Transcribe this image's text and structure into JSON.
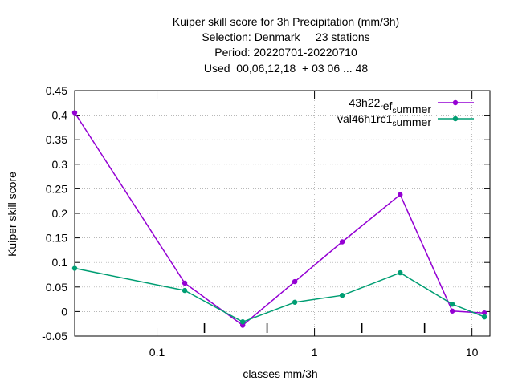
{
  "chart_data": {
    "type": "line",
    "title_lines": [
      "Kuiper skill score  for 3h Precipitation (mm/3h)",
      "Selection: Denmark     23 stations",
      "Period: 20220701-20220710",
      "Used  00,06,12,18  + 03 06 ... 48"
    ],
    "xlabel": "classes mm/3h",
    "ylabel": "Kuiper skill score",
    "x_scale": "log",
    "xlim": [
      0.03,
      13
    ],
    "ylim": [
      -0.05,
      0.45
    ],
    "grid": true,
    "legend_position": "top-right",
    "y_ticks": [
      {
        "value": -0.05,
        "label": "-0.05"
      },
      {
        "value": 0,
        "label": "0"
      },
      {
        "value": 0.05,
        "label": "0.05"
      },
      {
        "value": 0.1,
        "label": "0.1"
      },
      {
        "value": 0.15,
        "label": "0.15"
      },
      {
        "value": 0.2,
        "label": "0.2"
      },
      {
        "value": 0.25,
        "label": "0.25"
      },
      {
        "value": 0.3,
        "label": "0.3"
      },
      {
        "value": 0.35,
        "label": "0.35"
      },
      {
        "value": 0.4,
        "label": "0.4"
      },
      {
        "value": 0.45,
        "label": "0.45"
      }
    ],
    "x_ticks": [
      {
        "value": 0.1,
        "label": "0.1"
      },
      {
        "value": 1,
        "label": "1"
      },
      {
        "value": 10,
        "label": "10"
      }
    ],
    "series": [
      {
        "name": "43h22_ref_summer",
        "legend": {
          "pre": "43h22",
          "sub1": "r",
          "mid": "ef",
          "sub2": "s",
          "post": "ummer"
        },
        "color": "#9400d3",
        "x": [
          0.03,
          0.15,
          0.35,
          0.75,
          1.5,
          3.5,
          7.5,
          12
        ],
        "y": [
          0.405,
          0.058,
          -0.028,
          0.061,
          0.142,
          0.238,
          0.001,
          -0.003
        ]
      },
      {
        "name": "val46h1rc1_summer",
        "legend": {
          "pre": "val46h1rc1",
          "sub1": "",
          "mid": "",
          "sub2": "s",
          "post": "ummer"
        },
        "color": "#009e73",
        "x": [
          0.03,
          0.15,
          0.35,
          0.75,
          1.5,
          3.5,
          7.5,
          12
        ],
        "y": [
          0.088,
          0.043,
          -0.021,
          0.019,
          0.033,
          0.079,
          0.015,
          -0.011
        ]
      }
    ]
  }
}
